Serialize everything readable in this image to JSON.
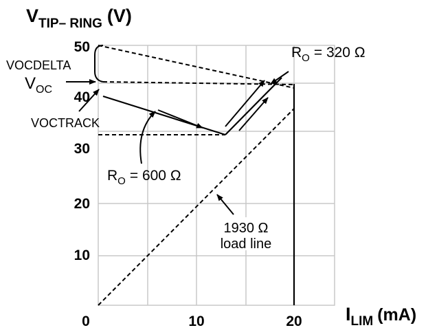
{
  "y_axis": {
    "title_main": "V",
    "title_sub": "TIP– RING",
    "title_unit": "(V)",
    "ticks": [
      {
        "value": 50,
        "label": "50"
      },
      {
        "value": 40,
        "label": "40"
      },
      {
        "value": 30,
        "label": "30"
      },
      {
        "value": 20,
        "label": "20"
      },
      {
        "value": 10,
        "label": "10"
      },
      {
        "value": 0,
        "label": "0"
      }
    ],
    "range": [
      0,
      50
    ]
  },
  "x_axis": {
    "title_main": "I",
    "title_sub": "LIM",
    "title_unit": "(mA)",
    "ticks": [
      {
        "value": 10,
        "label": "10"
      },
      {
        "value": 20,
        "label": "20"
      }
    ],
    "range": [
      0,
      20
    ]
  },
  "grid": true,
  "annotations": {
    "vocdelta": "VOCDELTA",
    "voc_main": "V",
    "voc_sub": "OC",
    "voctrack": "VOCTRACK",
    "ro600_main": "R",
    "ro600_sub": "O",
    "ro600_value": "= 600 Ω",
    "ro320_main": "R",
    "ro320_sub": "O",
    "ro320_value": "= 320 Ω",
    "load_line_value": "1930 Ω",
    "load_line_text": "load line"
  }
}
